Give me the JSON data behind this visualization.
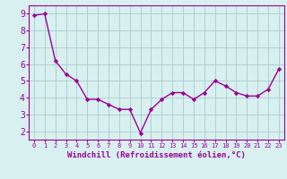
{
  "x": [
    0,
    1,
    2,
    3,
    4,
    5,
    6,
    7,
    8,
    9,
    10,
    11,
    12,
    13,
    14,
    15,
    16,
    17,
    18,
    19,
    20,
    21,
    22,
    23
  ],
  "y": [
    8.9,
    9.0,
    6.2,
    5.4,
    5.0,
    3.9,
    3.9,
    3.6,
    3.3,
    3.3,
    1.9,
    3.3,
    3.9,
    4.3,
    4.3,
    3.9,
    4.3,
    5.0,
    4.7,
    4.3,
    4.1,
    4.1,
    4.5,
    5.7
  ],
  "line_color": "#990099",
  "marker": "D",
  "markersize": 2.2,
  "linewidth": 1.0,
  "bg_color": "#d8f0f0",
  "grid_color": "#aacccc",
  "xlabel": "Windchill (Refroidissement éolien,°C)",
  "ylabel_ticks": [
    2,
    3,
    4,
    5,
    6,
    7,
    8,
    9
  ],
  "ylim": [
    1.5,
    9.5
  ],
  "xlim": [
    -0.5,
    23.5
  ],
  "xtick_labels": [
    "0",
    "1",
    "2",
    "3",
    "4",
    "5",
    "6",
    "7",
    "8",
    "9",
    "10",
    "11",
    "12",
    "13",
    "14",
    "15",
    "16",
    "17",
    "18",
    "19",
    "20",
    "21",
    "22",
    "23"
  ],
  "tick_color": "#990099",
  "spine_color": "#990099",
  "xlabel_fontsize": 6.5,
  "ytick_fontsize": 7,
  "xtick_fontsize": 5.0
}
